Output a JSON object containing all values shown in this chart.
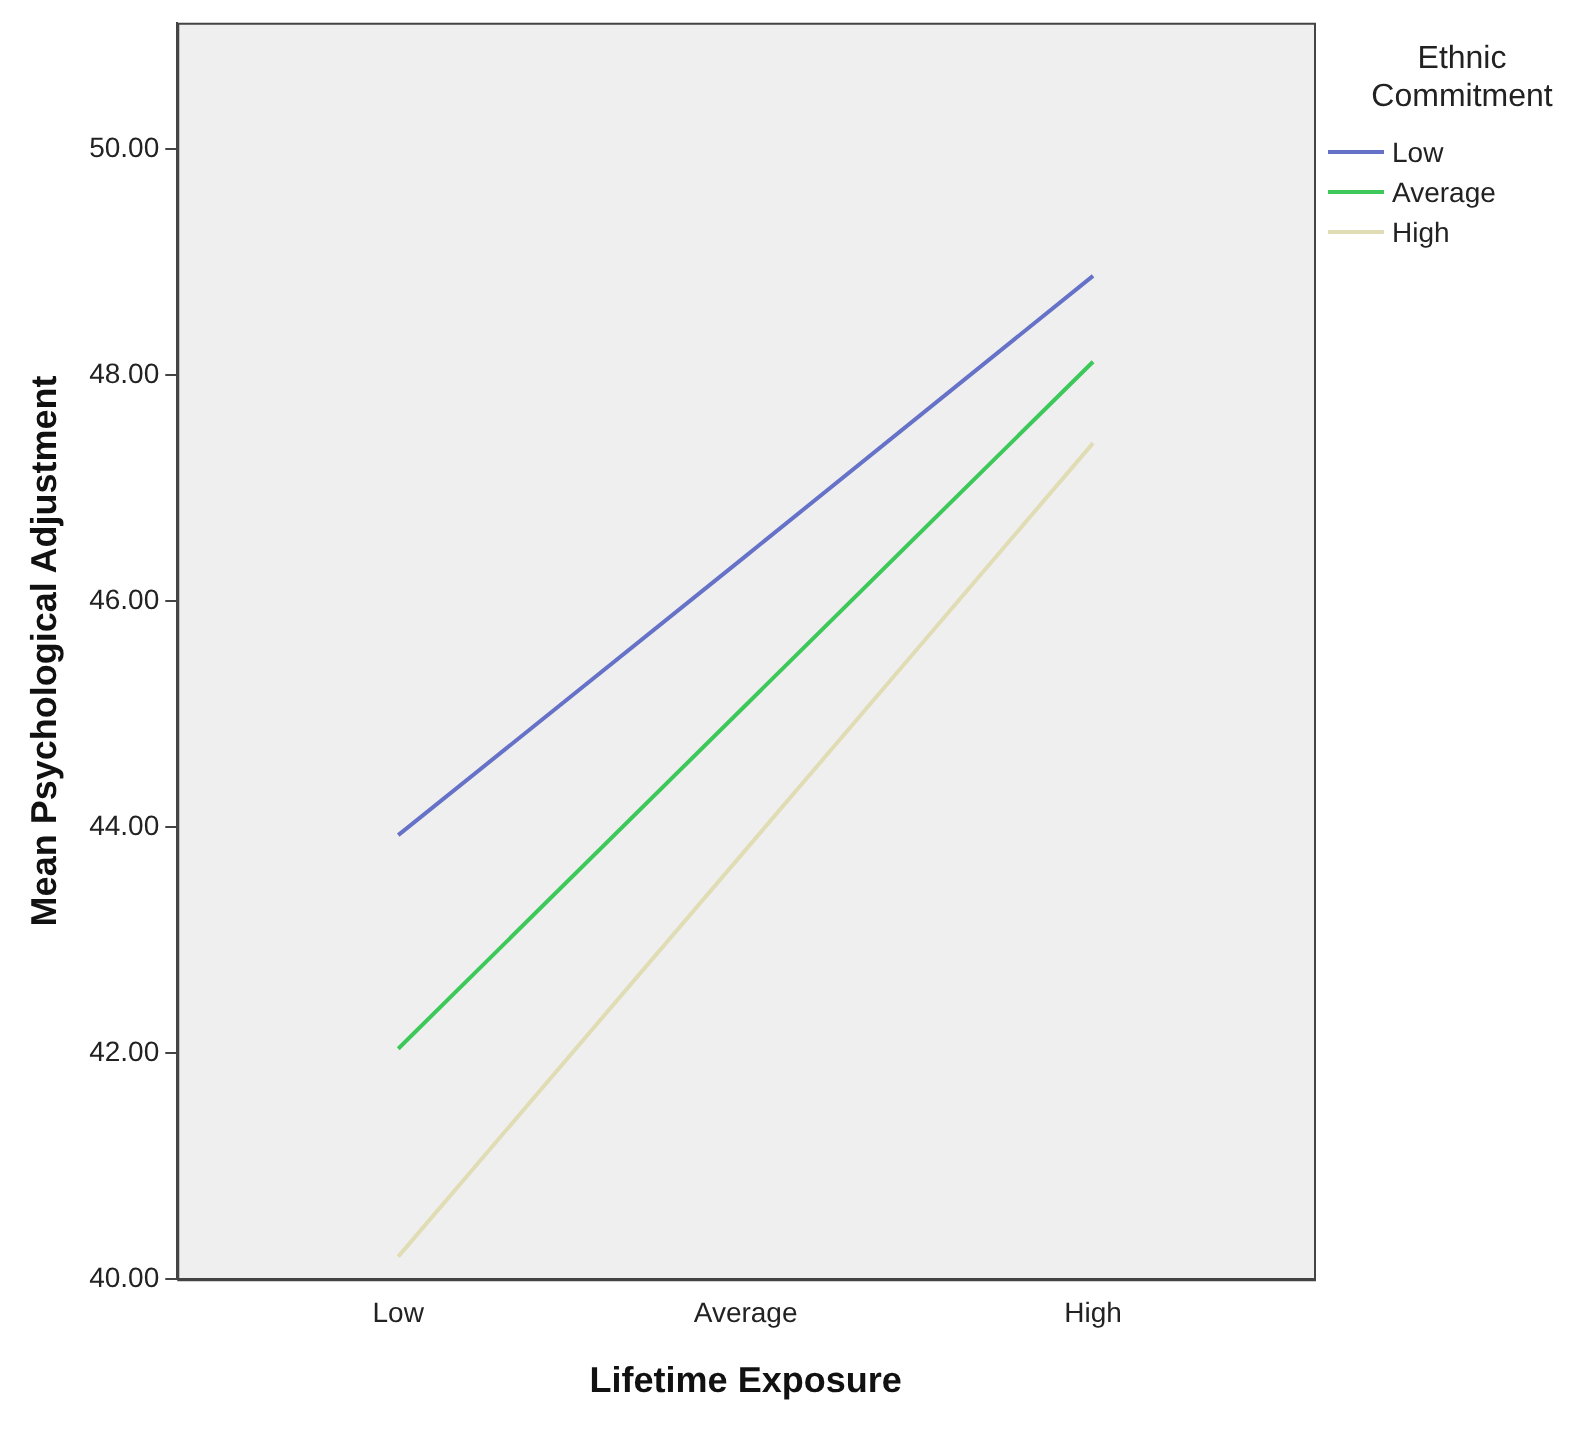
{
  "chart_data": {
    "type": "line",
    "xlabel": "Lifetime Exposure",
    "ylabel": "Mean Psychological Adjustment",
    "legend_title": "Ethnic Commitment",
    "categories": [
      "Low",
      "Average",
      "High"
    ],
    "series": [
      {
        "name": "Low",
        "color": "#6672c8",
        "values": [
          43.93,
          46.4,
          48.88
        ]
      },
      {
        "name": "Average",
        "color": "#3dc85a",
        "values": [
          42.04,
          45.08,
          48.12
        ]
      },
      {
        "name": "High",
        "color": "#e0dcb4",
        "values": [
          40.2,
          43.8,
          47.4
        ]
      }
    ],
    "ylim": [
      40,
      51.12
    ],
    "yticks": [
      {
        "value": 40,
        "label": "40.00"
      },
      {
        "value": 42,
        "label": "42.00"
      },
      {
        "value": 44,
        "label": "44.00"
      },
      {
        "value": 46,
        "label": "46.00"
      },
      {
        "value": 48,
        "label": "48.00"
      },
      {
        "value": 50,
        "label": "50.00"
      }
    ],
    "grid": false,
    "legend": "top right",
    "marker": "none",
    "line_style": "solid"
  }
}
